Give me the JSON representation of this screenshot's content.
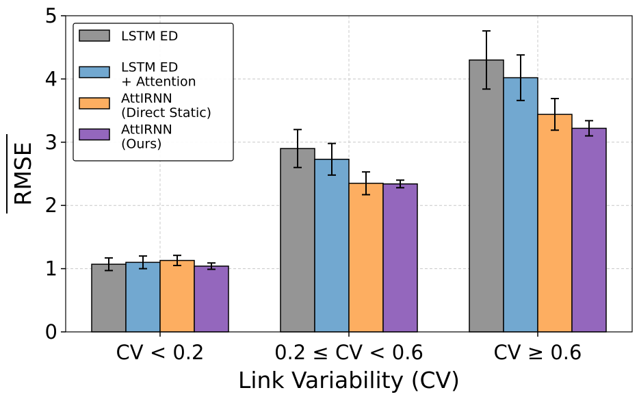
{
  "chart_data": {
    "type": "bar",
    "title": "",
    "xlabel": "Link Variability (CV)",
    "ylabel": "RMSE",
    "ylabel_overline": true,
    "ylim": [
      0,
      5
    ],
    "yticks": [
      0,
      1,
      2,
      3,
      4,
      5
    ],
    "grid": true,
    "legend_position": "top-left",
    "categories": [
      "CV < 0.2",
      "0.2 ≤ CV < 0.6",
      "CV ≥ 0.6"
    ],
    "series": [
      {
        "name": "LSTM ED",
        "legend_lines": [
          "LSTM ED"
        ],
        "color": "#959595",
        "values": [
          1.07,
          2.9,
          4.3
        ],
        "errors": [
          0.1,
          0.3,
          0.46
        ]
      },
      {
        "name": "LSTM ED + Attention",
        "legend_lines": [
          "LSTM ED",
          "+ Attention"
        ],
        "color": "#72a8d0",
        "values": [
          1.1,
          2.73,
          4.02
        ],
        "errors": [
          0.1,
          0.25,
          0.36
        ]
      },
      {
        "name": "AttIRNN (Direct Static)",
        "legend_lines": [
          "AttIRNN",
          "(Direct Static)"
        ],
        "color": "#fdae61",
        "values": [
          1.13,
          2.35,
          3.44
        ],
        "errors": [
          0.08,
          0.18,
          0.25
        ]
      },
      {
        "name": "AttIRNN (Ours)",
        "legend_lines": [
          "AttIRNN",
          "(Ours)"
        ],
        "color": "#9467bd",
        "values": [
          1.04,
          2.34,
          3.22
        ],
        "errors": [
          0.05,
          0.06,
          0.12
        ]
      }
    ]
  }
}
